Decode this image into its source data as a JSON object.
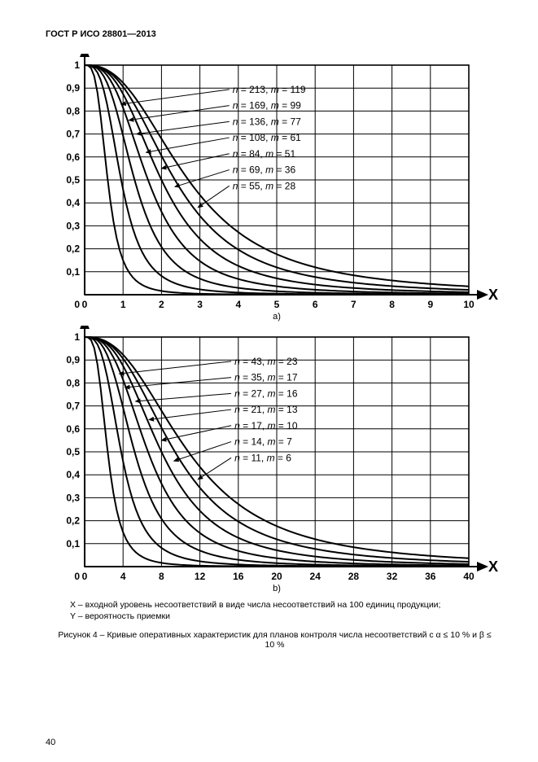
{
  "header": "ГОСТ Р ИСО 28801—2013",
  "page_number": "40",
  "legend": {
    "x": "X – входной уровень несоответствий в виде числа несоответствий на 100 единиц продукции;",
    "y": "Y – вероятность приемки"
  },
  "caption": "Рисунок 4 – Кривые оперативных характеристик для планов контроля числа несоответствий с α ≤ 10 % и β ≤ 10 %",
  "chart_a": {
    "type": "line",
    "sublabel": "a)",
    "xlabel": "X",
    "ylabel": "Y",
    "xlim": [
      0,
      10
    ],
    "ylim": [
      0,
      1
    ],
    "xticks": [
      0,
      1,
      2,
      3,
      4,
      5,
      6,
      7,
      8,
      9,
      10
    ],
    "yticks": [
      0,
      0.1,
      0.2,
      0.3,
      0.4,
      0.5,
      0.6,
      0.7,
      0.8,
      0.9,
      1
    ],
    "ytick_labels": [
      "0",
      "0,1",
      "0,2",
      "0,3",
      "0,4",
      "0,5",
      "0,6",
      "0,7",
      "0,8",
      "0,9",
      "1"
    ],
    "background_color": "#ffffff",
    "grid_color": "#000000",
    "line_color": "#000000",
    "line_width": 2,
    "series": [
      {
        "label": "n = 213, m = 119",
        "n": 213,
        "m": 119,
        "label_x": 3.85,
        "label_y": 0.88,
        "arrow_to_x": 0.95,
        "arrow_to_y": 0.83
      },
      {
        "label": "n = 169, m = 99",
        "n": 169,
        "m": 99,
        "label_x": 3.85,
        "label_y": 0.81,
        "arrow_to_x": 1.15,
        "arrow_to_y": 0.76
      },
      {
        "label": "n = 136, m = 77",
        "n": 136,
        "m": 77,
        "label_x": 3.85,
        "label_y": 0.74,
        "arrow_to_x": 1.35,
        "arrow_to_y": 0.7
      },
      {
        "label": "n = 108, m = 61",
        "n": 108,
        "m": 61,
        "label_x": 3.85,
        "label_y": 0.67,
        "arrow_to_x": 1.6,
        "arrow_to_y": 0.62
      },
      {
        "label": "n = 84, m = 51",
        "n": 84,
        "m": 51,
        "label_x": 3.85,
        "label_y": 0.6,
        "arrow_to_x": 2.0,
        "arrow_to_y": 0.55
      },
      {
        "label": "n = 69, m = 36",
        "n": 69,
        "m": 36,
        "label_x": 3.85,
        "label_y": 0.53,
        "arrow_to_x": 2.35,
        "arrow_to_y": 0.47
      },
      {
        "label": "n = 55, m = 28",
        "n": 55,
        "m": 28,
        "label_x": 3.85,
        "label_y": 0.46,
        "arrow_to_x": 2.95,
        "arrow_to_y": 0.38
      }
    ]
  },
  "chart_b": {
    "type": "line",
    "sublabel": "b)",
    "xlabel": "X",
    "ylabel": "Y",
    "xlim": [
      0,
      40
    ],
    "ylim": [
      0,
      1
    ],
    "xticks": [
      0,
      4,
      8,
      12,
      16,
      20,
      24,
      28,
      32,
      36,
      40
    ],
    "yticks": [
      0,
      0.1,
      0.2,
      0.3,
      0.4,
      0.5,
      0.6,
      0.7,
      0.8,
      0.9,
      1
    ],
    "ytick_labels": [
      "0",
      "0,1",
      "0,2",
      "0,3",
      "0,4",
      "0,5",
      "0,6",
      "0,7",
      "0,8",
      "0,9",
      "1"
    ],
    "background_color": "#ffffff",
    "grid_color": "#000000",
    "line_color": "#000000",
    "line_width": 2,
    "series": [
      {
        "label": "n = 43, m = 23",
        "n": 43,
        "m": 23,
        "label_x": 15.6,
        "label_y": 0.88,
        "arrow_to_x": 3.6,
        "arrow_to_y": 0.84
      },
      {
        "label": "n = 35, m = 17",
        "n": 35,
        "m": 17,
        "label_x": 15.6,
        "label_y": 0.81,
        "arrow_to_x": 4.2,
        "arrow_to_y": 0.78
      },
      {
        "label": "n = 27, m = 16",
        "n": 27,
        "m": 16,
        "label_x": 15.6,
        "label_y": 0.74,
        "arrow_to_x": 5.3,
        "arrow_to_y": 0.72
      },
      {
        "label": "n = 21, m = 13",
        "n": 21,
        "m": 13,
        "label_x": 15.6,
        "label_y": 0.67,
        "arrow_to_x": 6.7,
        "arrow_to_y": 0.64
      },
      {
        "label": "n = 17, m = 10",
        "n": 17,
        "m": 10,
        "label_x": 15.6,
        "label_y": 0.6,
        "arrow_to_x": 8.0,
        "arrow_to_y": 0.55
      },
      {
        "label": "n = 14, m = 7",
        "n": 14,
        "m": 7,
        "label_x": 15.6,
        "label_y": 0.53,
        "arrow_to_x": 9.3,
        "arrow_to_y": 0.46
      },
      {
        "label": "n = 11, m = 6",
        "n": 11,
        "m": 6,
        "label_x": 15.6,
        "label_y": 0.46,
        "arrow_to_x": 11.8,
        "arrow_to_y": 0.38
      }
    ]
  }
}
